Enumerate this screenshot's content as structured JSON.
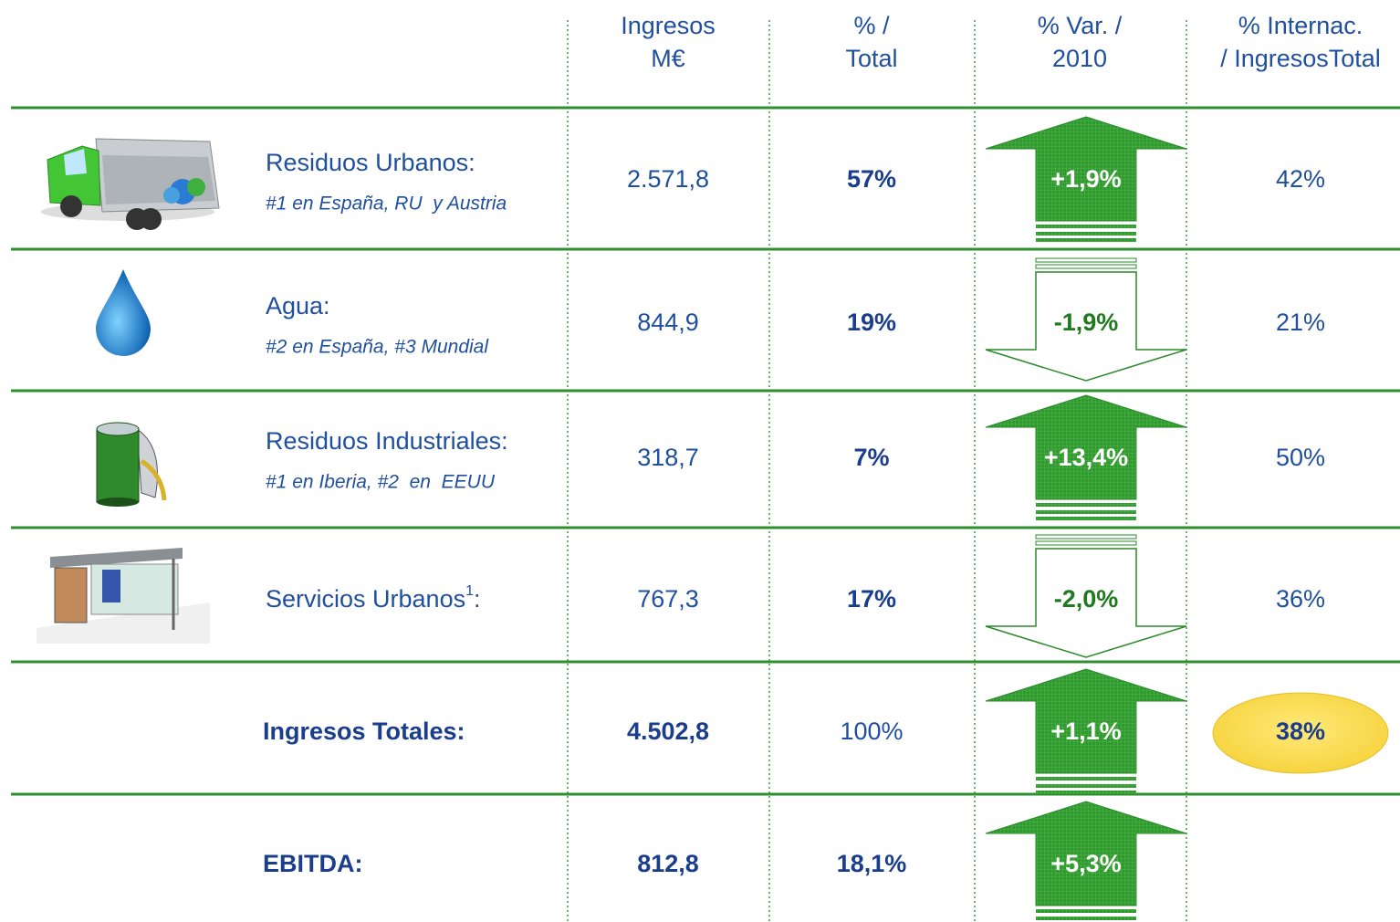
{
  "header": {
    "columns": [
      [
        "Ingresos",
        "M€"
      ],
      [
        "% /",
        "Total"
      ],
      [
        "% Var. /",
        "2010"
      ],
      [
        "% Internac.",
        "/ IngresosTotal"
      ]
    ]
  },
  "table": {
    "rows": [
      {
        "label": "Residuos Urbanos:",
        "sublabel": "#1 en España, RU  y Austria",
        "ingresos": "2.571,8",
        "total": "57%",
        "variation": "+1,9%",
        "direction": "up",
        "internac": "42%"
      },
      {
        "label": "Agua:",
        "sublabel": "#2 en España, #3 Mundial",
        "ingresos": "844,9",
        "total": "19%",
        "variation": "-1,9%",
        "direction": "down",
        "internac": "21%"
      },
      {
        "label": "Residuos Industriales:",
        "sublabel": "#1 en Iberia, #2  en  EEUU",
        "ingresos": "318,7",
        "total": "7%",
        "variation": "+13,4%",
        "direction": "up",
        "internac": "50%"
      },
      {
        "label": "Servicios Urbanos",
        "footnote": "1",
        "label_suffix": ":",
        "ingresos": "767,3",
        "total": "17%",
        "variation": "-2,0%",
        "direction": "down",
        "internac": "36%"
      },
      {
        "label": "Ingresos Totales:",
        "ingresos": "4.502,8",
        "total": "100%",
        "variation": "+1,1%",
        "direction": "up",
        "internac": "38%",
        "highlight": true
      },
      {
        "label": "EBITDA:",
        "ingresos": "812,8",
        "total": "18,1%",
        "variation": "+5,3%",
        "direction": "up"
      }
    ]
  }
}
